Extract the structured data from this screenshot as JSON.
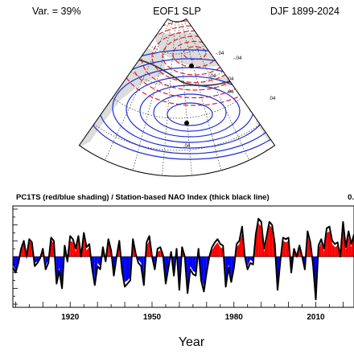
{
  "header": {
    "left": "Var. = 39%",
    "center": "EOF1 SLP",
    "right": "DJF 1899-2024"
  },
  "map": {
    "positive_contour_color": "#1f2fd6",
    "negative_contour_color": "#e02020",
    "zero_contour_color": "#333333",
    "contour_labels": [
      "-.04",
      "-.04",
      "-.04",
      ".04",
      ".04",
      ".04",
      ".04"
    ]
  },
  "chart_data": {
    "type": "area",
    "title": "PC1TS (red/blue shading) / Station-based NAO Index (thick black line)",
    "corner_label": "0.",
    "xlabel": "Year",
    "ylabel": "",
    "xlim": [
      1899,
      2024
    ],
    "ylim": [
      -3.2,
      3.2
    ],
    "x_ticks": [
      "1920",
      "1950",
      "1980",
      "2010"
    ],
    "x_tick_values": [
      1920,
      1950,
      1980,
      2010
    ],
    "positive_color": "#ff0000",
    "negative_color": "#0000ff",
    "x": [
      1899,
      1900,
      1901,
      1902,
      1903,
      1904,
      1905,
      1906,
      1907,
      1908,
      1909,
      1910,
      1911,
      1912,
      1913,
      1914,
      1915,
      1916,
      1917,
      1918,
      1919,
      1920,
      1921,
      1922,
      1923,
      1924,
      1925,
      1926,
      1927,
      1928,
      1929,
      1930,
      1931,
      1932,
      1933,
      1934,
      1935,
      1936,
      1937,
      1938,
      1939,
      1940,
      1941,
      1942,
      1943,
      1944,
      1945,
      1946,
      1947,
      1948,
      1949,
      1950,
      1951,
      1952,
      1953,
      1954,
      1955,
      1956,
      1957,
      1958,
      1959,
      1960,
      1961,
      1962,
      1963,
      1964,
      1965,
      1966,
      1967,
      1968,
      1969,
      1970,
      1971,
      1972,
      1973,
      1974,
      1975,
      1976,
      1977,
      1978,
      1979,
      1980,
      1981,
      1982,
      1983,
      1984,
      1985,
      1986,
      1987,
      1988,
      1989,
      1990,
      1991,
      1992,
      1993,
      1994,
      1995,
      1996,
      1997,
      1998,
      1999,
      2000,
      2001,
      2002,
      2003,
      2004,
      2005,
      2006,
      2007,
      2008,
      2009,
      2010,
      2011,
      2012,
      2013,
      2014,
      2015,
      2016,
      2017,
      2018,
      2019,
      2020,
      2021,
      2022,
      2023,
      2024
    ],
    "series": [
      {
        "name": "PC1TS",
        "values": [
          -0.5,
          -0.9,
          -0.3,
          0.6,
          0.8,
          -0.2,
          0.9,
          1.0,
          -0.4,
          -0.3,
          -0.2,
          0.3,
          -0.6,
          -0.2,
          1.1,
          0.8,
          -1.5,
          -0.7,
          -1.8,
          0.5,
          -0.4,
          1.0,
          0.9,
          0.3,
          1.0,
          0.2,
          1.2,
          0.4,
          0.6,
          -0.5,
          -1.5,
          -0.4,
          -0.6,
          0.5,
          -0.2,
          0.9,
          0.5,
          -1.0,
          0.1,
          0.8,
          -0.7,
          -1.6,
          -1.5,
          -1.3,
          0.9,
          0.0,
          -0.2,
          -0.4,
          -1.6,
          0.7,
          1.0,
          0.2,
          -0.6,
          0.3,
          0.4,
          0.3,
          -1.5,
          -0.5,
          0.1,
          -1.0,
          0.3,
          -1.9,
          0.4,
          0.2,
          -2.1,
          -0.6,
          -0.9,
          -1.0,
          0.3,
          -1.3,
          -1.9,
          -0.8,
          0.1,
          0.4,
          0.7,
          0.9,
          0.6,
          0.5,
          -1.6,
          -0.5,
          -1.4,
          -0.5,
          0.6,
          0.8,
          1.5,
          0.1,
          -0.6,
          -0.2,
          -0.3,
          1.1,
          2.1,
          1.9,
          0.3,
          1.0,
          2.0,
          1.8,
          0.6,
          -1.8,
          -0.1,
          1.0,
          0.9,
          1.0,
          -0.8,
          0.3,
          0.2,
          0.5,
          0.1,
          -0.6,
          1.3,
          0.7,
          -0.3,
          -2.3,
          0.5,
          0.9,
          0.3,
          1.5,
          1.6,
          0.8,
          0.6,
          0.7,
          0.2,
          1.9,
          0.4,
          1.3,
          0.6,
          1.3
        ]
      },
      {
        "name": "Station-based NAO Index",
        "values": [
          -0.7,
          -1.0,
          -0.4,
          0.5,
          1.0,
          0.0,
          1.1,
          0.9,
          -0.6,
          -0.4,
          -0.1,
          0.5,
          -0.8,
          -0.4,
          1.2,
          1.0,
          -1.7,
          -0.9,
          -2.0,
          0.7,
          -0.3,
          1.3,
          1.1,
          0.5,
          1.3,
          0.0,
          1.5,
          0.6,
          0.8,
          -0.7,
          -1.8,
          -0.6,
          -0.8,
          0.6,
          -0.3,
          1.1,
          0.4,
          -1.2,
          0.0,
          1.0,
          -0.9,
          -1.9,
          -1.7,
          -1.5,
          1.1,
          0.2,
          -0.4,
          -0.6,
          -1.8,
          0.9,
          1.3,
          0.0,
          -0.8,
          0.5,
          0.6,
          0.1,
          -1.7,
          -0.7,
          0.3,
          -1.2,
          0.5,
          -2.1,
          0.6,
          0.0,
          -2.3,
          -0.8,
          -1.1,
          -1.2,
          0.5,
          -1.5,
          -2.2,
          -1.0,
          0.0,
          0.6,
          0.9,
          1.1,
          0.8,
          0.7,
          -1.9,
          -0.7,
          -1.6,
          -0.7,
          0.8,
          1.0,
          1.9,
          0.0,
          -0.8,
          -0.4,
          -0.5,
          1.4,
          2.4,
          2.2,
          0.5,
          1.3,
          2.2,
          2.0,
          0.8,
          -2.1,
          -0.3,
          1.2,
          1.1,
          1.2,
          -1.0,
          0.5,
          0.0,
          0.7,
          0.0,
          -0.8,
          1.6,
          0.9,
          -0.5,
          -2.7,
          0.7,
          1.1,
          0.5,
          1.8,
          1.9,
          1.0,
          0.8,
          0.9,
          0.0,
          2.2,
          0.6,
          1.6,
          0.8,
          1.4
        ]
      }
    ]
  }
}
